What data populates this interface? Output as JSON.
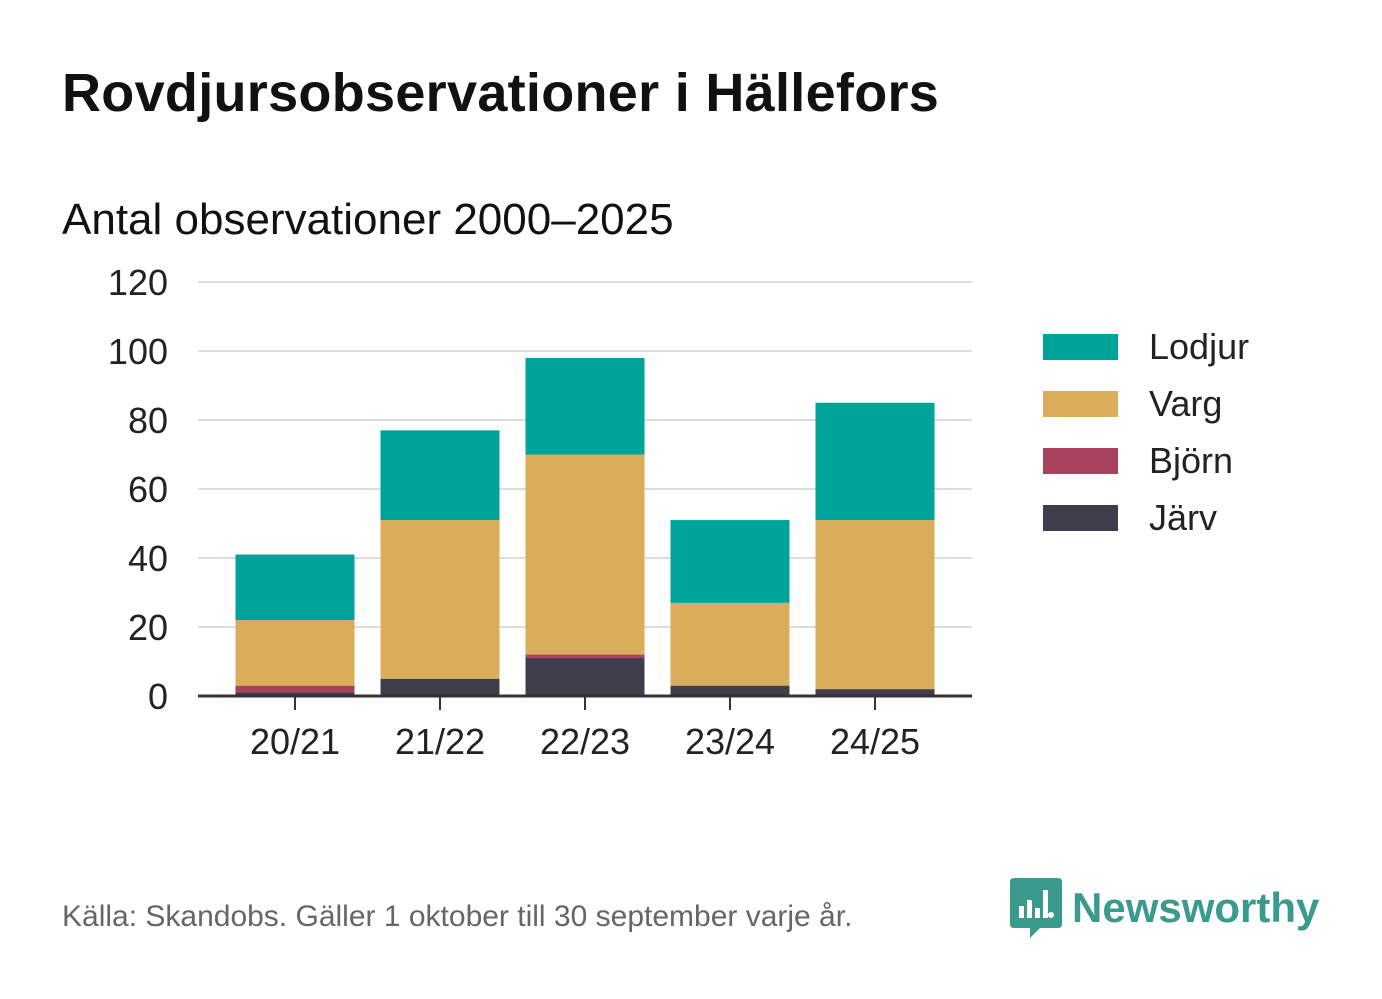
{
  "header": {
    "title": "Rovdjursobservationer i Hällefors",
    "subtitle": "Antal observationer 2000–2025"
  },
  "footer": {
    "source": "Källa: Skandobs. Gäller 1 oktober till 30 september varje år.",
    "brand": "Newsworthy",
    "brand_icon": "newsworthy-logo-icon",
    "brand_color": "#3a9a8e"
  },
  "chart_data": {
    "type": "bar",
    "stacked": true,
    "categories": [
      "20/21",
      "21/22",
      "22/23",
      "23/24",
      "24/25"
    ],
    "series": [
      {
        "name": "Järv",
        "color": "#3f3d4b",
        "values": [
          1,
          5,
          11,
          3,
          2
        ]
      },
      {
        "name": "Björn",
        "color": "#a8415b",
        "values": [
          2,
          0,
          1,
          0,
          0
        ]
      },
      {
        "name": "Varg",
        "color": "#d9ad5a",
        "values": [
          19,
          46,
          58,
          24,
          49
        ]
      },
      {
        "name": "Lodjur",
        "color": "#00a39a",
        "values": [
          19,
          26,
          28,
          24,
          34
        ]
      }
    ],
    "legend_order": [
      "Lodjur",
      "Varg",
      "Björn",
      "Järv"
    ],
    "yticks": [
      "0",
      "20",
      "40",
      "60",
      "80",
      "100",
      "120"
    ],
    "ylim": [
      0,
      120
    ],
    "grid": true,
    "legend_position": "right"
  }
}
